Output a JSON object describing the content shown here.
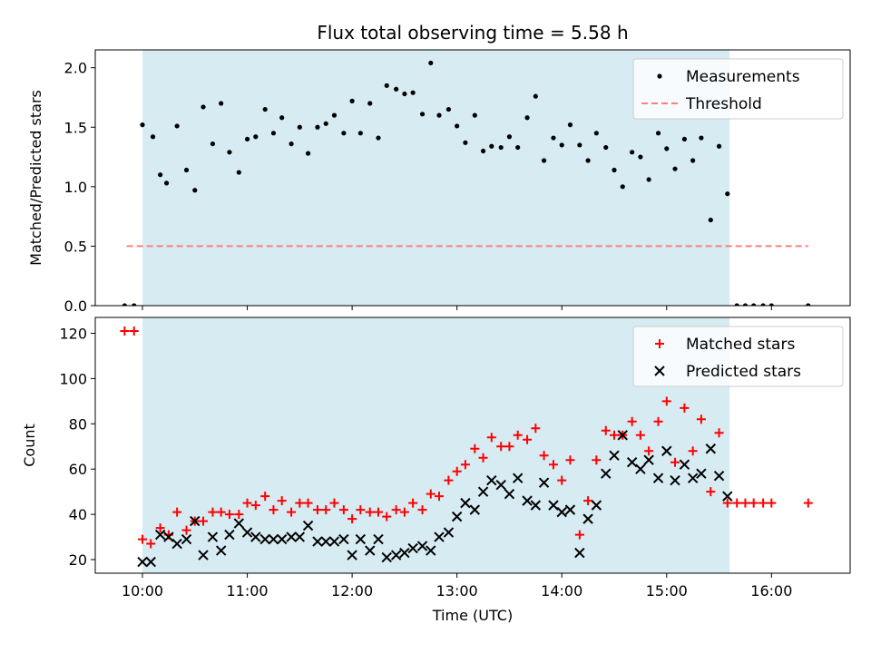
{
  "title": "Flux total observing time = 5.58 h",
  "colors": {
    "shade": "#add8e6",
    "matched": "#ff0000",
    "predicted": "#000000",
    "threshold": "#ff7f7f",
    "measurement": "#000000"
  },
  "chart_data": [
    {
      "type": "scatter",
      "ylabel": "Matched/Predicted stars",
      "xlim": [
        -0.45,
        6.75
      ],
      "ylim": [
        0,
        2.15
      ],
      "yticks": [
        0.0,
        0.5,
        1.0,
        1.5,
        2.0
      ],
      "ytick_labels": [
        "0.0",
        "0.5",
        "1.0",
        "1.5",
        "2.0"
      ],
      "shaded_region": [
        0.0,
        5.6
      ],
      "legend": {
        "position": "top-right",
        "entries": [
          "Measurements",
          "Threshold"
        ]
      },
      "threshold": {
        "name": "Threshold",
        "y": 0.5,
        "x_range": [
          -0.15,
          6.35
        ]
      },
      "series": [
        {
          "name": "Measurements",
          "x": [
            -0.17,
            -0.08,
            0.0,
            0.1,
            0.17,
            0.23,
            0.33,
            0.42,
            0.5,
            0.58,
            0.67,
            0.75,
            0.83,
            0.92,
            1.0,
            1.08,
            1.17,
            1.25,
            1.33,
            1.42,
            1.5,
            1.58,
            1.67,
            1.75,
            1.83,
            1.92,
            2.0,
            2.08,
            2.17,
            2.25,
            2.33,
            2.42,
            2.5,
            2.58,
            2.67,
            2.75,
            2.83,
            2.92,
            3.0,
            3.08,
            3.17,
            3.25,
            3.33,
            3.42,
            3.5,
            3.58,
            3.67,
            3.75,
            3.83,
            3.92,
            4.0,
            4.08,
            4.17,
            4.25,
            4.33,
            4.42,
            4.5,
            4.58,
            4.67,
            4.75,
            4.83,
            4.92,
            5.0,
            5.08,
            5.17,
            5.25,
            5.33,
            5.42,
            5.5,
            5.58,
            5.67,
            5.75,
            5.83,
            5.92,
            6.0,
            6.35
          ],
          "y": [
            0.0,
            0.0,
            1.52,
            1.42,
            1.1,
            1.03,
            1.51,
            1.14,
            0.97,
            1.67,
            1.36,
            1.7,
            1.29,
            1.12,
            1.4,
            1.42,
            1.65,
            1.45,
            1.58,
            1.36,
            1.5,
            1.28,
            1.5,
            1.53,
            1.6,
            1.45,
            1.72,
            1.45,
            1.7,
            1.41,
            1.85,
            1.82,
            1.78,
            1.79,
            1.61,
            2.04,
            1.6,
            1.65,
            1.51,
            1.37,
            1.6,
            1.3,
            1.34,
            1.33,
            1.42,
            1.33,
            1.58,
            1.76,
            1.22,
            1.41,
            1.35,
            1.52,
            1.35,
            1.22,
            1.45,
            1.33,
            1.14,
            1.0,
            1.29,
            1.25,
            1.06,
            1.45,
            1.32,
            1.15,
            1.4,
            1.22,
            1.41,
            0.72,
            1.34,
            0.94,
            0.0,
            0.0,
            0.0,
            0.0,
            0.0,
            0.0
          ]
        }
      ]
    },
    {
      "type": "scatter",
      "xlabel": "Time (UTC)",
      "ylabel": "Count",
      "xlim": [
        -0.45,
        6.75
      ],
      "ylim": [
        14,
        127
      ],
      "xticks": [
        0,
        1,
        2,
        3,
        4,
        5,
        6
      ],
      "xtick_labels": [
        "10:00",
        "11:00",
        "12:00",
        "13:00",
        "14:00",
        "15:00",
        "16:00"
      ],
      "yticks": [
        20,
        40,
        60,
        80,
        100,
        120
      ],
      "ytick_labels": [
        "20",
        "40",
        "60",
        "80",
        "100",
        "120"
      ],
      "shaded_region": [
        0.0,
        5.6
      ],
      "legend": {
        "position": "top-right",
        "entries": [
          "Matched stars",
          "Predicted stars"
        ]
      },
      "series": [
        {
          "name": "Matched stars",
          "marker": "plus",
          "x": [
            -0.17,
            -0.08,
            0.0,
            0.08,
            0.17,
            0.25,
            0.33,
            0.42,
            0.5,
            0.58,
            0.67,
            0.75,
            0.83,
            0.92,
            1.0,
            1.08,
            1.17,
            1.25,
            1.33,
            1.42,
            1.5,
            1.58,
            1.67,
            1.75,
            1.83,
            1.92,
            2.0,
            2.08,
            2.17,
            2.25,
            2.33,
            2.42,
            2.5,
            2.58,
            2.67,
            2.75,
            2.83,
            2.92,
            3.0,
            3.08,
            3.17,
            3.25,
            3.33,
            3.42,
            3.5,
            3.58,
            3.67,
            3.75,
            3.83,
            3.92,
            4.0,
            4.08,
            4.17,
            4.25,
            4.33,
            4.42,
            4.5,
            4.58,
            4.67,
            4.75,
            4.83,
            4.92,
            5.0,
            5.08,
            5.17,
            5.25,
            5.33,
            5.42,
            5.5,
            5.58,
            5.67,
            5.75,
            5.83,
            5.92,
            6.0,
            6.35
          ],
          "y": [
            121,
            121,
            29,
            27,
            34,
            31,
            41,
            33,
            37,
            37,
            41,
            41,
            40,
            40,
            45,
            44,
            48,
            42,
            46,
            41,
            45,
            45,
            42,
            42,
            45,
            42,
            38,
            42,
            41,
            41,
            39,
            42,
            41,
            45,
            42,
            49,
            48,
            55,
            59,
            62,
            69,
            65,
            74,
            70,
            70,
            75,
            73,
            78,
            66,
            62,
            55,
            64,
            31,
            46,
            64,
            77,
            75,
            75,
            81,
            75,
            68,
            81,
            90,
            63,
            87,
            68,
            82,
            50,
            76,
            45,
            45,
            45,
            45,
            45,
            45,
            45
          ]
        },
        {
          "name": "Predicted stars",
          "marker": "x",
          "x": [
            0.0,
            0.08,
            0.17,
            0.25,
            0.33,
            0.42,
            0.5,
            0.58,
            0.67,
            0.75,
            0.83,
            0.92,
            1.0,
            1.08,
            1.17,
            1.25,
            1.33,
            1.42,
            1.5,
            1.58,
            1.67,
            1.75,
            1.83,
            1.92,
            2.0,
            2.08,
            2.17,
            2.25,
            2.33,
            2.42,
            2.5,
            2.58,
            2.67,
            2.75,
            2.83,
            2.92,
            3.0,
            3.08,
            3.17,
            3.25,
            3.33,
            3.42,
            3.5,
            3.58,
            3.67,
            3.75,
            3.83,
            3.92,
            4.0,
            4.08,
            4.17,
            4.25,
            4.33,
            4.42,
            4.5,
            4.58,
            4.67,
            4.75,
            4.83,
            4.92,
            5.0,
            5.08,
            5.17,
            5.25,
            5.33,
            5.42,
            5.5,
            5.58
          ],
          "y": [
            19,
            19,
            31,
            30,
            27,
            29,
            37,
            22,
            30,
            24,
            31,
            36,
            32,
            30,
            29,
            29,
            29,
            30,
            30,
            35,
            28,
            28,
            28,
            29,
            22,
            29,
            24,
            29,
            21,
            22,
            23,
            25,
            26,
            24,
            30,
            32,
            39,
            45,
            42,
            50,
            55,
            53,
            49,
            56,
            46,
            44,
            54,
            44,
            41,
            42,
            23,
            38,
            44,
            58,
            66,
            75,
            63,
            60,
            64,
            56,
            68,
            55,
            62,
            56,
            58,
            69,
            57,
            48
          ]
        }
      ]
    }
  ]
}
